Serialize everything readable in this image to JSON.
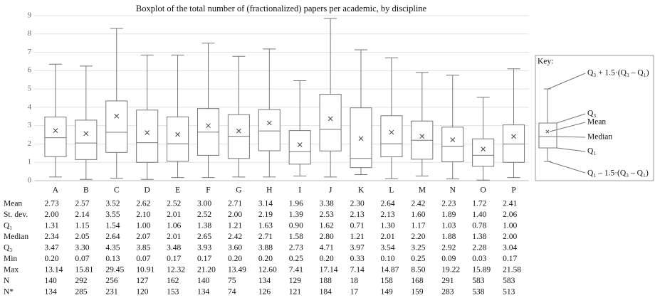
{
  "chart_data": {
    "type": "boxplot",
    "title": "Boxplot of the total number of (fractionalized) papers per academic, by discipline",
    "categories": [
      "A",
      "B",
      "C",
      "D",
      "E",
      "F",
      "G",
      "H",
      "I",
      "J",
      "K",
      "L",
      "M",
      "N",
      "O",
      "P"
    ],
    "whisker_high": [
      6.35,
      6.25,
      8.3,
      6.85,
      6.85,
      7.5,
      6.78,
      7.18,
      5.45,
      8.85,
      7.14,
      6.7,
      5.9,
      5.75,
      4.55,
      6.1
    ],
    "ylim": [
      0,
      9
    ],
    "yticks": [
      0,
      1,
      2,
      3,
      4,
      5,
      6,
      7,
      8,
      9
    ],
    "grid": true,
    "color": "#777777"
  },
  "table": {
    "rows": [
      {
        "label": "Mean",
        "values": [
          "2.73",
          "2.57",
          "3.52",
          "2.62",
          "2.52",
          "3.00",
          "2.71",
          "3.14",
          "1.96",
          "3.38",
          "2.30",
          "2.64",
          "2.42",
          "2.23",
          "1.72",
          "2.41"
        ]
      },
      {
        "label": "St. dev.",
        "values": [
          "2.00",
          "2.14",
          "3.55",
          "2.10",
          "2.01",
          "2.52",
          "2.00",
          "2.19",
          "1.39",
          "2.53",
          "2.13",
          "2.13",
          "1.60",
          "1.89",
          "1.40",
          "2.06"
        ]
      },
      {
        "label": "Q₁",
        "values": [
          "1.31",
          "1.15",
          "1.54",
          "1.00",
          "1.06",
          "1.38",
          "1.21",
          "1.63",
          "0.90",
          "1.62",
          "0.71",
          "1.30",
          "1.17",
          "1.03",
          "0.78",
          "1.00"
        ]
      },
      {
        "label": "Median",
        "values": [
          "2.34",
          "2.05",
          "2.64",
          "2.07",
          "2.01",
          "2.65",
          "2.42",
          "2.71",
          "1.58",
          "2.80",
          "1.21",
          "2.01",
          "2.20",
          "1.88",
          "1.38",
          "2.00"
        ]
      },
      {
        "label": "Q₃",
        "values": [
          "3.47",
          "3.30",
          "4.35",
          "3.85",
          "3.48",
          "3.93",
          "3.60",
          "3.88",
          "2.73",
          "4.71",
          "3.97",
          "3.54",
          "3.25",
          "2.92",
          "2.28",
          "3.04"
        ]
      },
      {
        "label": "Min",
        "values": [
          "0.20",
          "0.07",
          "0.13",
          "0.07",
          "0.17",
          "0.17",
          "0.20",
          "0.20",
          "0.25",
          "0.20",
          "0.33",
          "0.10",
          "0.25",
          "0.09",
          "0.03",
          "0.17"
        ]
      },
      {
        "label": "Max",
        "values": [
          "13.14",
          "15.81",
          "29.45",
          "10.91",
          "12.32",
          "21.20",
          "13.49",
          "12.60",
          "7.41",
          "17.14",
          "7.14",
          "14.87",
          "8.50",
          "19.22",
          "15.89",
          "21.58"
        ]
      },
      {
        "label": "N",
        "values": [
          "140",
          "292",
          "256",
          "127",
          "162",
          "140",
          "75",
          "134",
          "129",
          "188",
          "18",
          "158",
          "168",
          "291",
          "583",
          "583"
        ]
      },
      {
        "label": "N*",
        "values": [
          "134",
          "285",
          "231",
          "120",
          "153",
          "134",
          "74",
          "126",
          "121",
          "184",
          "17",
          "149",
          "159",
          "283",
          "538",
          "513"
        ]
      }
    ]
  },
  "key": {
    "title": "Key:",
    "upper": "Q₃ + 1.5·(Q₃ – Q₁)",
    "q3": "Q₃",
    "mean": "Mean",
    "median": "Median",
    "q1": "Q₁",
    "lower": "Q₁ – 1.5·(Q₃ – Q₁)"
  }
}
